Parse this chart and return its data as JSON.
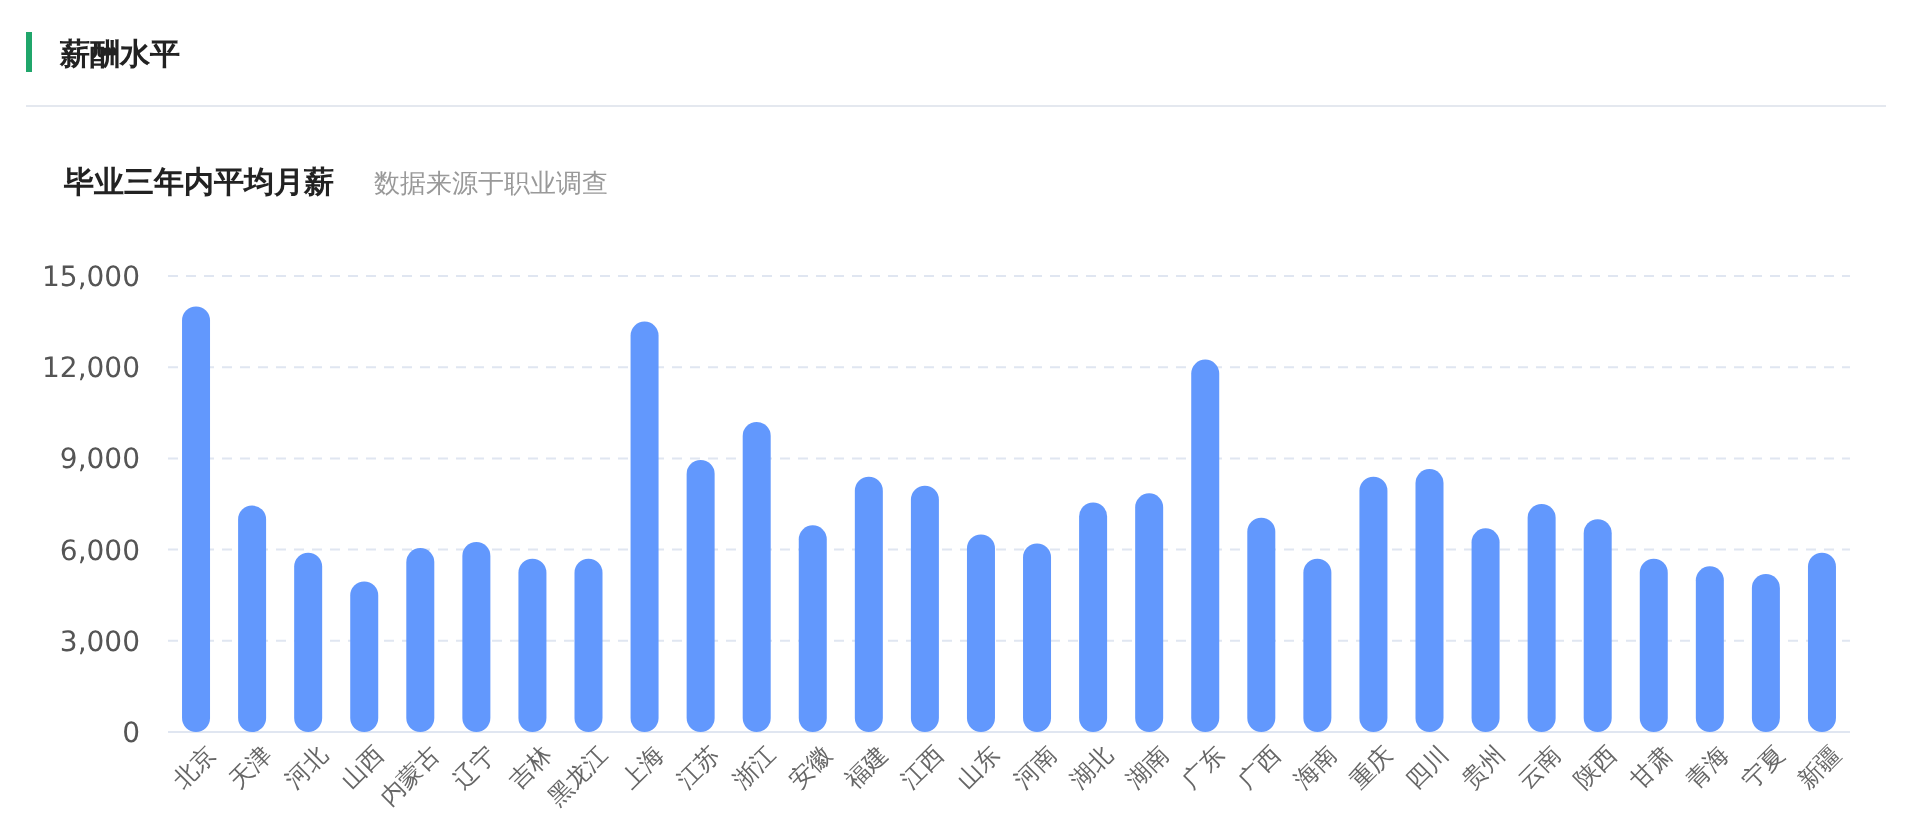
{
  "chart_data": {
    "type": "bar",
    "title": "薪酬水平",
    "subtitle": "毕业三年内平均月薪",
    "annotations": [
      "数据来源于职业调查"
    ],
    "categories": [
      "北京",
      "天津",
      "河北",
      "山西",
      "内蒙古",
      "辽宁",
      "吉林",
      "黑龙江",
      "上海",
      "江苏",
      "浙江",
      "安徽",
      "福建",
      "江西",
      "山东",
      "河南",
      "湖北",
      "湖南",
      "广东",
      "广西",
      "海南",
      "重庆",
      "四川",
      "贵州",
      "云南",
      "陕西",
      "甘肃",
      "青海",
      "宁夏",
      "新疆"
    ],
    "values": [
      14000,
      7450,
      5900,
      4950,
      6050,
      6250,
      5700,
      5700,
      13500,
      8950,
      10200,
      6800,
      8400,
      8100,
      6500,
      6200,
      7550,
      7850,
      12250,
      7050,
      5700,
      8400,
      8650,
      6700,
      7500,
      7000,
      5700,
      5450,
      5200,
      5900
    ],
    "color": "#6298fd",
    "ylim": [
      0,
      15000
    ],
    "yticks": [
      0,
      {
        "value": 3000,
        "label": "3,000"
      },
      {
        "value": 6000,
        "label": "6,000"
      },
      {
        "value": 9000,
        "label": "9,000"
      },
      {
        "value": 12000,
        "label": "12,000"
      },
      {
        "value": 15000,
        "label": "15,000"
      }
    ],
    "grid": "y"
  }
}
